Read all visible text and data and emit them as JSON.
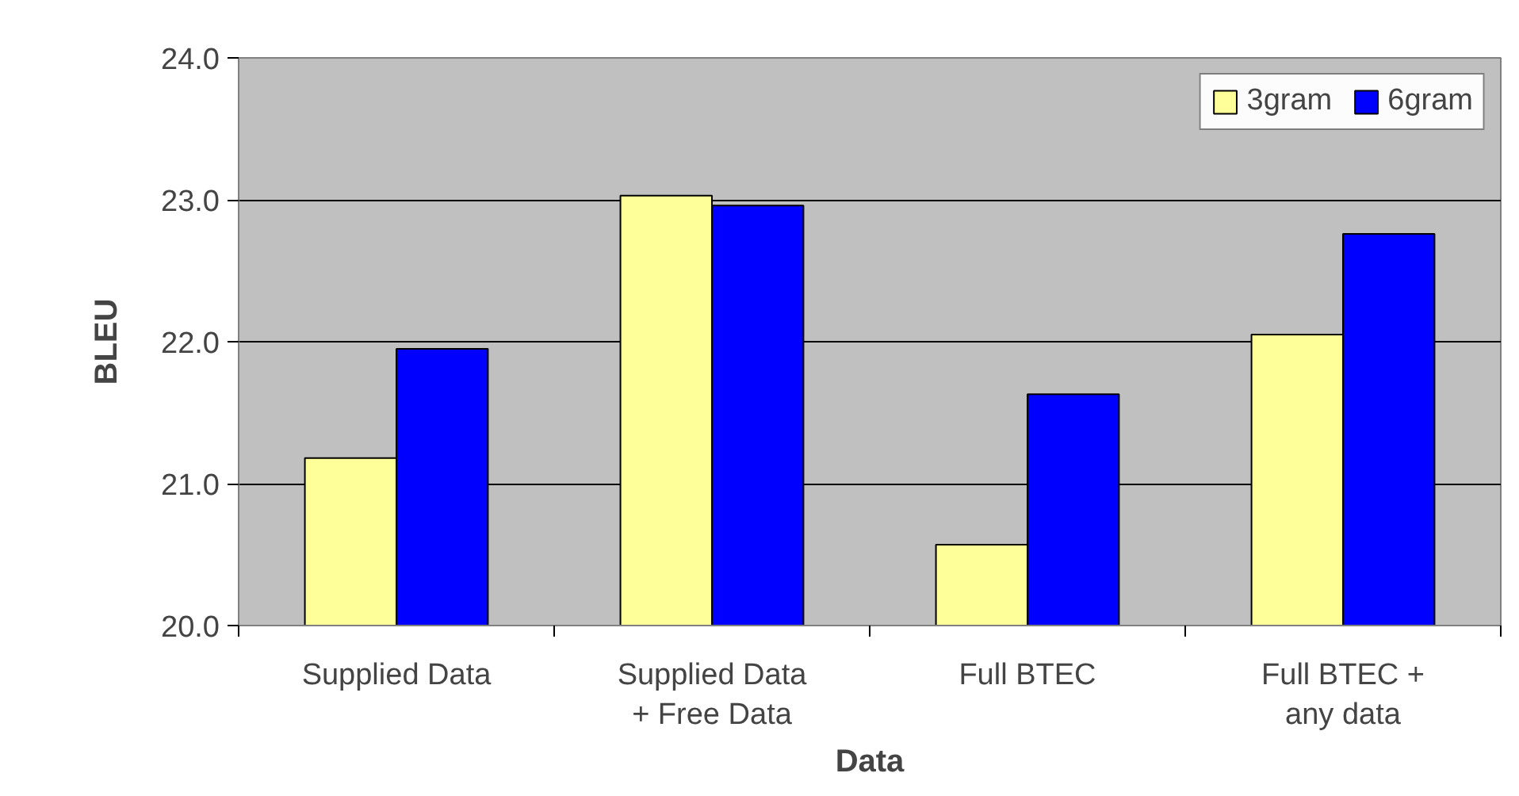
{
  "chart_data": {
    "type": "bar",
    "xlabel": "Data",
    "ylabel": "BLEU",
    "categories": [
      "Supplied Data",
      "Supplied Data\n+ Free Data",
      "Full BTEC",
      "Full BTEC +\nany data"
    ],
    "series": [
      {
        "name": "3gram",
        "color": "#ffff99",
        "values": [
          21.18,
          23.03,
          20.57,
          22.05
        ]
      },
      {
        "name": "6gram",
        "color": "#0000ff",
        "values": [
          21.95,
          22.96,
          21.63,
          22.76
        ]
      }
    ],
    "ylim": [
      20.0,
      24.0
    ],
    "yticks": [
      {
        "value": 20,
        "label": "20.0"
      },
      {
        "value": 21,
        "label": "21.0"
      },
      {
        "value": 22,
        "label": "22.0"
      },
      {
        "value": 23,
        "label": "23.0"
      },
      {
        "value": 24,
        "label": "24.0"
      }
    ],
    "grid": "y",
    "legend": "top right"
  }
}
